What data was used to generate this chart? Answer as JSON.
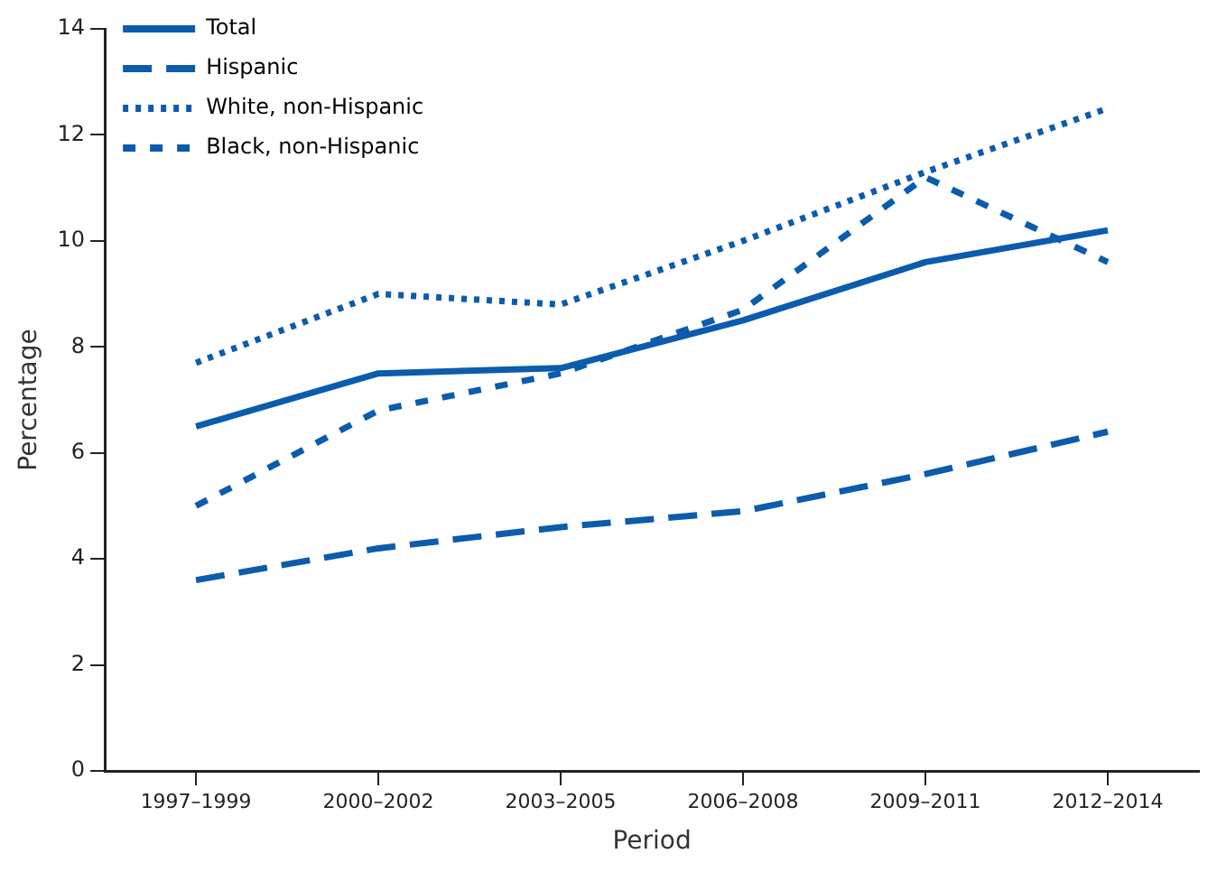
{
  "chart_data": {
    "type": "line",
    "xlabel": "Period",
    "ylabel": "Percentage",
    "categories": [
      "1997–1999",
      "2000–2002",
      "2003–2005",
      "2006–2008",
      "2009–2011",
      "2012–2014"
    ],
    "series": [
      {
        "name": "Total",
        "color": "#0b5cad",
        "line_style": "solid",
        "values": [
          6.5,
          7.5,
          7.6,
          8.5,
          9.6,
          10.2
        ]
      },
      {
        "name": "Hispanic",
        "color": "#0b5cad",
        "line_style": "dashed",
        "values": [
          3.6,
          4.2,
          4.6,
          4.9,
          5.6,
          6.4
        ]
      },
      {
        "name": "White, non-Hispanic",
        "color": "#0b5cad",
        "line_style": "dotted",
        "values": [
          7.7,
          9.0,
          8.8,
          10.0,
          11.3,
          12.5
        ]
      },
      {
        "name": "Black, non-Hispanic",
        "color": "#0b5cad",
        "line_style": "dotted",
        "values": [
          5.0,
          6.8,
          7.5,
          8.7,
          11.2,
          9.6
        ]
      }
    ],
    "ylim": [
      0,
      14
    ],
    "yticks": [
      0,
      2,
      4,
      6,
      8,
      10,
      12,
      14
    ],
    "grid": false,
    "legend": "top left",
    "marker": "none"
  }
}
